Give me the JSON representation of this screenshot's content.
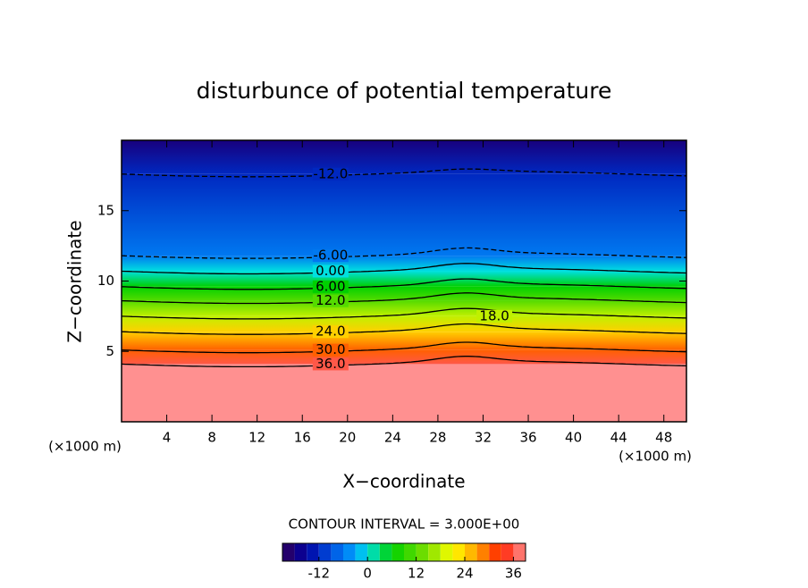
{
  "chart_data": {
    "type": "contour",
    "title": "disturbunce of potential temperature",
    "x_label": "X−coordinate",
    "y_label": "Z−coordinate",
    "x_unit_label": "(×1000 m)",
    "y_unit_label": "(×1000 m)",
    "contour_interval_text": "CONTOUR INTERVAL = 3.000E+00",
    "xlim": [
      0,
      50
    ],
    "xticks": [
      4,
      8,
      12,
      16,
      20,
      24,
      28,
      32,
      36,
      40,
      44,
      48
    ],
    "ylim": [
      0,
      20
    ],
    "yticks": [
      5,
      10,
      15
    ],
    "contours": {
      "levels": [
        -12,
        -6,
        0,
        6,
        12,
        18,
        24,
        30,
        36
      ],
      "value_labels": [
        "-12.0",
        "-6.00",
        "0.00",
        "6.00",
        "12.0",
        "18.0",
        "24.0",
        "30.0",
        "36.0"
      ],
      "z": [
        17.6,
        11.8,
        10.7,
        9.6,
        8.6,
        7.5,
        6.4,
        5.1,
        4.1
      ]
    },
    "negative_dashed": true,
    "colorbar_lim": [
      -21,
      39
    ],
    "colorbar_ticks": [
      -12,
      0,
      12,
      24,
      36
    ],
    "colorbar_step": 3,
    "colormap": [
      {
        "value": -21,
        "color": "#30005a"
      },
      {
        "value": -15,
        "color": "#0000a0"
      },
      {
        "value": -9,
        "color": "#0050e0"
      },
      {
        "value": -3,
        "color": "#00a0ff"
      },
      {
        "value": 0,
        "color": "#00e0e0"
      },
      {
        "value": 6,
        "color": "#00d000"
      },
      {
        "value": 15,
        "color": "#80e000"
      },
      {
        "value": 21,
        "color": "#ffff00"
      },
      {
        "value": 27,
        "color": "#ffa000"
      },
      {
        "value": 33,
        "color": "#ff2000"
      },
      {
        "value": 39,
        "color": "#ff9090"
      }
    ]
  }
}
